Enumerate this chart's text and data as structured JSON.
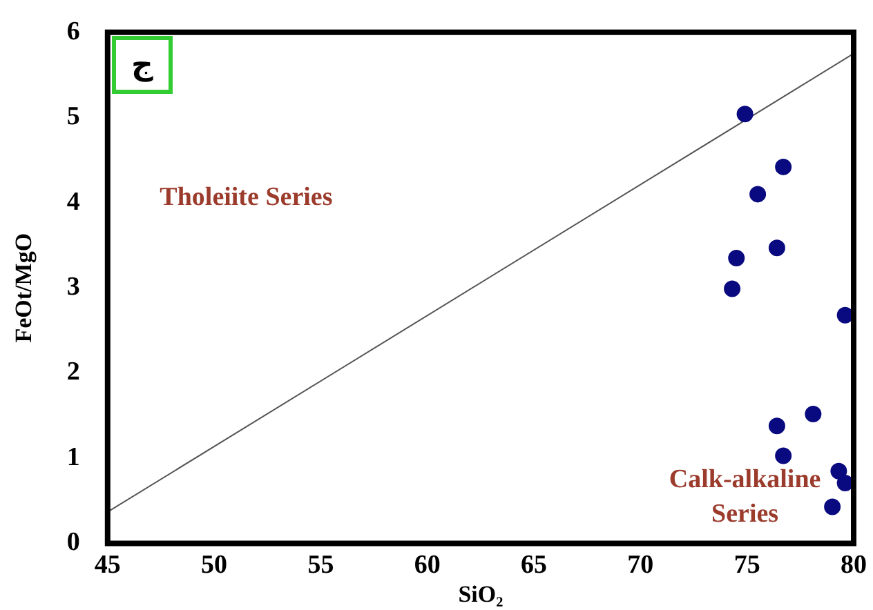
{
  "chart_data": {
    "type": "scatter",
    "xlabel": "SiO₂",
    "ylabel": "FeOt/MgO",
    "xlim": [
      45,
      80
    ],
    "ylim": [
      0,
      6
    ],
    "xticks": [
      45,
      50,
      55,
      60,
      65,
      70,
      75,
      80
    ],
    "yticks": [
      0,
      1,
      2,
      3,
      4,
      5,
      6
    ],
    "annotations": [
      "Tholeiite Series",
      "Calk-alkaline Series",
      "ج"
    ],
    "series": [
      {
        "marker": "circle",
        "color": "#0a0a80",
        "x": [
          74.9,
          76.7,
          75.5,
          74.5,
          76.4,
          74.3,
          79.6,
          78.1,
          76.4,
          76.7,
          79.3,
          79.6,
          79.0
        ],
        "values": [
          5.04,
          4.42,
          4.1,
          3.35,
          3.47,
          2.99,
          2.68,
          1.52,
          1.38,
          1.03,
          0.85,
          0.71,
          0.43
        ]
      },
      {
        "type": "line",
        "marker": "none",
        "color": "#555555",
        "x": [
          45,
          80
        ],
        "values": [
          0.37,
          5.75
        ]
      }
    ]
  }
}
